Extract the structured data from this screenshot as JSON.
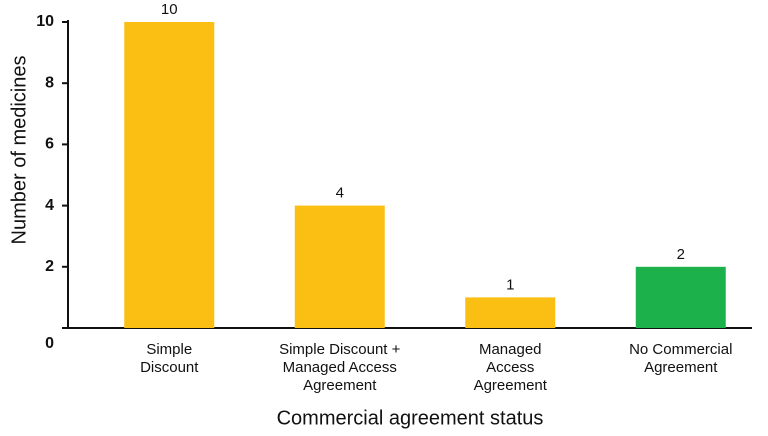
{
  "chart_data": {
    "type": "bar",
    "categories": [
      [
        "Simple",
        "Discount"
      ],
      [
        "Simple Discount +",
        "Managed Access",
        "Agreement"
      ],
      [
        "Managed",
        "Access",
        "Agreement"
      ],
      [
        "No Commercial",
        "Agreement"
      ]
    ],
    "values": [
      10,
      4,
      1,
      2
    ],
    "colors": [
      "#fbbf14",
      "#fbbf14",
      "#fbbf14",
      "#1db14b"
    ],
    "xlabel": "Commercial agreement status",
    "ylabel": "Number of medicines",
    "ylim": [
      0,
      10
    ],
    "yticks": [
      0,
      2,
      4,
      6,
      8,
      10
    ]
  }
}
